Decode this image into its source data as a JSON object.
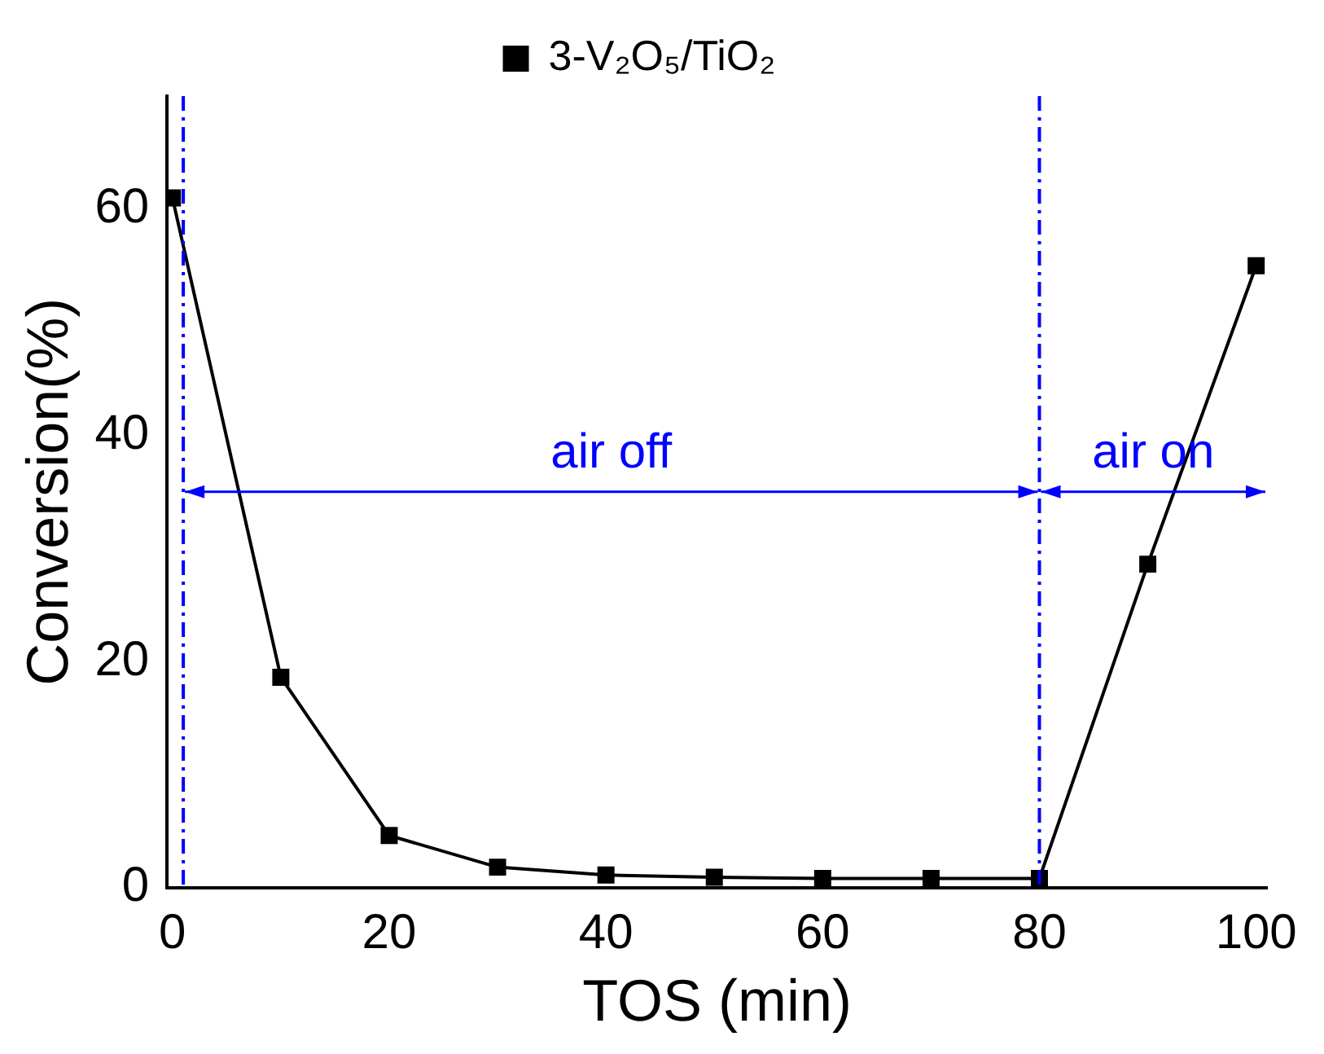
{
  "chart_data": {
    "type": "line",
    "xlabel": "TOS (min)",
    "ylabel": "Conversion(%)",
    "x": [
      0,
      10,
      20,
      30,
      40,
      50,
      60,
      70,
      80,
      90,
      100
    ],
    "series": [
      {
        "name": "3-V₂O₅/TiO₂",
        "color": "#000000",
        "values": [
          61,
          18.6,
          4.6,
          1.8,
          1.1,
          0.9,
          0.8,
          0.8,
          0.8,
          28.6,
          55
        ]
      }
    ],
    "xlim": [
      -0.5,
      101
    ],
    "xticks": [
      0,
      20,
      40,
      60,
      80,
      100
    ],
    "ylim": [
      0,
      70
    ],
    "yticks": [
      0,
      20,
      40,
      60
    ],
    "marker": "square",
    "line_style": "solid",
    "grid": false,
    "legend": "top",
    "ref_lines": [
      {
        "axis": "x",
        "value": 1,
        "color": "#0000ff",
        "line_style": "dashed"
      },
      {
        "axis": "x",
        "value": 80,
        "color": "#0000ff",
        "line_style": "dashed"
      }
    ],
    "annotations": [
      "air off",
      "air on"
    ]
  }
}
